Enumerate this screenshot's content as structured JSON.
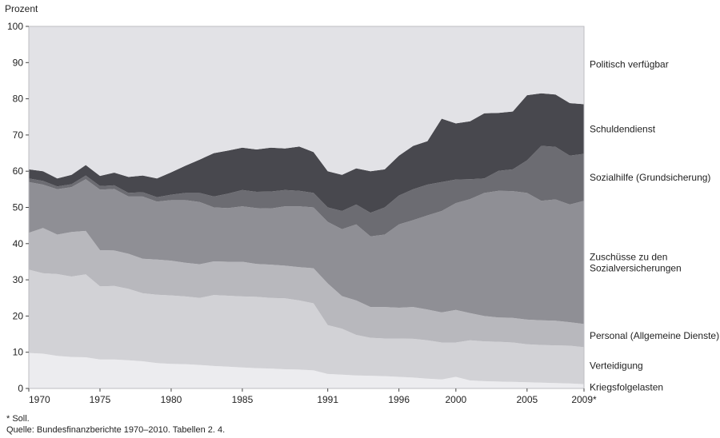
{
  "chart_data": {
    "type": "area",
    "stacked": true,
    "title": "",
    "ylabel": "Prozent",
    "xlabel": "",
    "ylim": [
      0,
      100
    ],
    "yticks": [
      0,
      10,
      20,
      30,
      40,
      50,
      60,
      70,
      80,
      90,
      100
    ],
    "xlim": [
      1970,
      2009
    ],
    "xticks": [
      {
        "value": 1970,
        "label": "1970"
      },
      {
        "value": 1975,
        "label": "1975"
      },
      {
        "value": 1980,
        "label": "1980"
      },
      {
        "value": 1985,
        "label": "1985"
      },
      {
        "value": 1991,
        "label": "1991"
      },
      {
        "value": 1996,
        "label": "1996"
      },
      {
        "value": 2000,
        "label": "2000"
      },
      {
        "value": 2005,
        "label": "2005"
      },
      {
        "value": 2009,
        "label": "2009*"
      }
    ],
    "x": [
      1970,
      1971,
      1972,
      1973,
      1974,
      1975,
      1976,
      1977,
      1978,
      1979,
      1980,
      1981,
      1982,
      1983,
      1984,
      1985,
      1986,
      1987,
      1988,
      1989,
      1990,
      1991,
      1992,
      1993,
      1994,
      1995,
      1996,
      1997,
      1998,
      1999,
      2000,
      2001,
      2002,
      2003,
      2004,
      2005,
      2006,
      2007,
      2008,
      2009
    ],
    "series": [
      {
        "name": "Kriegsfolgelasten",
        "color": "#ececef",
        "values": [
          9.8,
          9.6,
          9.0,
          8.7,
          8.6,
          8.0,
          8.0,
          7.8,
          7.5,
          7.0,
          6.8,
          6.7,
          6.5,
          6.2,
          6.0,
          5.8,
          5.6,
          5.5,
          5.3,
          5.2,
          5.0,
          4.0,
          3.8,
          3.6,
          3.5,
          3.4,
          3.2,
          3.0,
          2.7,
          2.5,
          3.2,
          2.2,
          2.0,
          1.9,
          1.8,
          1.7,
          1.6,
          1.5,
          1.4,
          1.2
        ]
      },
      {
        "name": "Verteidigung",
        "color": "#d2d2d6",
        "values": [
          23.0,
          22.2,
          22.6,
          22.2,
          22.9,
          20.2,
          20.3,
          19.7,
          18.8,
          18.9,
          18.9,
          18.7,
          18.5,
          19.6,
          19.6,
          19.6,
          19.7,
          19.5,
          19.6,
          19.1,
          18.5,
          13.5,
          12.7,
          11.2,
          10.5,
          10.4,
          10.6,
          10.7,
          10.6,
          10.2,
          9.5,
          11.1,
          11.0,
          11.0,
          10.9,
          10.5,
          10.4,
          10.4,
          10.4,
          10.2
        ]
      },
      {
        "name": "Personal (Allgemeine Dienste)",
        "color": "#b8b8bd",
        "values": [
          10.2,
          12.5,
          10.9,
          12.3,
          12.0,
          10.0,
          9.8,
          9.7,
          9.5,
          9.7,
          9.6,
          9.3,
          9.3,
          9.3,
          9.4,
          9.6,
          9.1,
          9.2,
          9.0,
          9.2,
          9.7,
          11.5,
          9.0,
          9.5,
          8.5,
          8.7,
          8.5,
          8.8,
          8.5,
          8.3,
          9.0,
          7.5,
          7.0,
          6.7,
          6.8,
          6.8,
          6.8,
          6.8,
          6.5,
          6.4
        ]
      },
      {
        "name": "Zuschüsse zu den Sozialversicherungen",
        "color": "#8f8f95",
        "values": [
          14.0,
          12.0,
          12.5,
          12.4,
          14.3,
          16.7,
          17.0,
          15.8,
          17.2,
          16.0,
          16.7,
          17.3,
          17.2,
          14.9,
          14.8,
          15.3,
          15.4,
          15.5,
          16.4,
          16.8,
          16.8,
          17.0,
          18.5,
          21.0,
          19.5,
          20.0,
          23.0,
          24.0,
          26.0,
          28.0,
          29.5,
          31.5,
          34.0,
          35.0,
          35.0,
          35.0,
          33.0,
          33.5,
          32.5,
          34.0
        ]
      },
      {
        "name": "Sozialhilfe (Grundsicherung)",
        "color": "#6c6c72",
        "values": [
          1.0,
          1.0,
          0.8,
          0.8,
          1.0,
          1.0,
          1.0,
          1.0,
          1.2,
          1.2,
          1.5,
          2.0,
          2.5,
          3.0,
          4.0,
          4.5,
          4.5,
          4.7,
          4.5,
          4.3,
          4.0,
          4.0,
          5.0,
          5.5,
          6.5,
          7.5,
          8.0,
          8.5,
          8.5,
          8.0,
          6.5,
          5.5,
          4.0,
          5.5,
          6.0,
          9.0,
          15.2,
          14.5,
          13.5,
          13.0
        ]
      },
      {
        "name": "Schuldendienst",
        "color": "#48484e",
        "values": [
          2.5,
          2.7,
          2.2,
          2.6,
          2.9,
          2.8,
          3.5,
          4.4,
          4.6,
          5.2,
          6.2,
          7.5,
          9.2,
          12.0,
          11.9,
          11.7,
          11.7,
          12.1,
          11.5,
          12.2,
          11.3,
          10.0,
          10.0,
          10.0,
          11.5,
          10.5,
          11.0,
          12.0,
          12.0,
          17.5,
          15.5,
          16.0,
          18.0,
          16.0,
          16.0,
          18.0,
          14.5,
          14.5,
          14.5,
          13.7
        ]
      },
      {
        "name": "Politisch verfügbar",
        "color": "#e2e2e6",
        "values": [
          39.5,
          40.0,
          42.0,
          41.0,
          38.3,
          41.3,
          40.4,
          41.6,
          41.2,
          42.0,
          40.3,
          38.5,
          36.8,
          35.0,
          34.3,
          33.5,
          34.0,
          33.5,
          33.7,
          33.2,
          34.7,
          40.0,
          41.0,
          39.2,
          40.0,
          39.5,
          35.7,
          33.0,
          31.7,
          25.5,
          26.8,
          26.2,
          24.0,
          23.9,
          23.5,
          19.0,
          18.5,
          18.8,
          21.2,
          21.5
        ]
      }
    ],
    "legend": "right, labels beside bands"
  },
  "axes": {
    "y_title": "Prozent"
  },
  "footnotes": {
    "note": "* Soll.",
    "source": "Quelle: Bundesfinanzberichte 1970–2010. Tabellen 2. 4."
  }
}
